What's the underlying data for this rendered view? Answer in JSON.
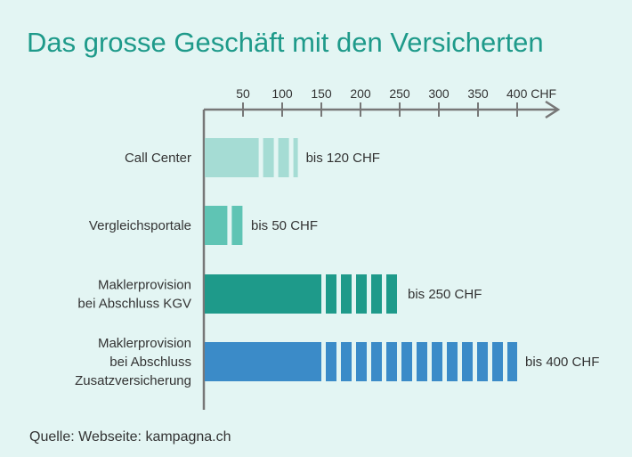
{
  "title": "Das grosse Geschäft mit den Versicherten",
  "source": "Quelle: Webseite: kampagna.ch",
  "chart_data": {
    "type": "bar",
    "orientation": "horizontal",
    "title": "Das grosse Geschäft mit den Versicherten",
    "xlim": [
      0,
      450
    ],
    "x_ticks": [
      50,
      100,
      150,
      200,
      250,
      300,
      350,
      400
    ],
    "x_tick_labels": [
      "50",
      "100",
      "150",
      "200",
      "250",
      "300",
      "350",
      "400 CHF"
    ],
    "categories": [
      [
        "Call Center"
      ],
      [
        "Vergleichsportale"
      ],
      [
        "Maklerprovision",
        "bei Abschluss KGV"
      ],
      [
        "Maklerprovision",
        "bei Abschluss",
        "Zusatzversicherung"
      ]
    ],
    "values": [
      120,
      50,
      250,
      400
    ],
    "solid_values": [
      70,
      30,
      150,
      150
    ],
    "value_labels": [
      "bis 120 CHF",
      "bis 50 CHF",
      "bis 250 CHF",
      "bis 400 CHF"
    ],
    "colors": [
      "#a5dcd4",
      "#5fc4b4",
      "#1e9a8a",
      "#3b8bc8"
    ],
    "axis_color": "#777777",
    "grid": false
  }
}
